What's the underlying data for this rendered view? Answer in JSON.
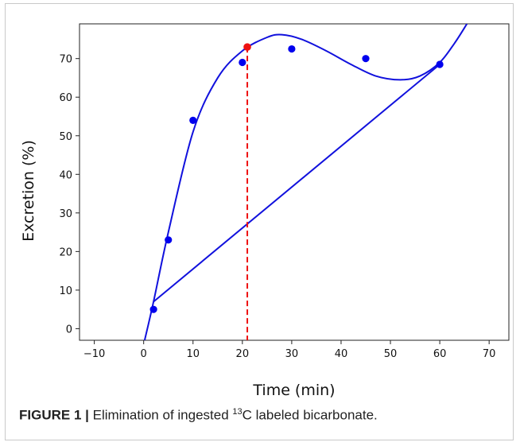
{
  "caption": {
    "label": "FIGURE 1 |",
    "text_before": " Elimination of ingested ",
    "superscript": "13",
    "text_after": "C labeled bicarbonate."
  },
  "chart_data": {
    "type": "scatter",
    "xlabel": "Time (min)",
    "ylabel": "Excretion (%)",
    "xlim": [
      -13,
      74
    ],
    "ylim": [
      -3,
      79
    ],
    "xticks": [
      -10,
      0,
      10,
      20,
      30,
      40,
      50,
      60,
      70
    ],
    "yticks": [
      0,
      10,
      20,
      30,
      40,
      50,
      60,
      70
    ],
    "grid": false,
    "points": {
      "color": "#0000ee",
      "x": [
        2,
        5,
        10,
        20,
        30,
        45,
        60
      ],
      "y": [
        5,
        23,
        54,
        69,
        72.5,
        70,
        68.5
      ]
    },
    "highlight_point": {
      "color": "#ee1111",
      "x": 21,
      "y": 73
    },
    "vline": {
      "color": "#ee1111",
      "style": "dashed",
      "x": 21
    },
    "fit_curve": {
      "color": "#1111dd",
      "x": [
        0.2,
        2,
        5,
        10,
        15,
        20,
        25,
        28,
        32,
        37,
        42,
        47,
        52,
        56,
        60,
        63,
        65.5
      ],
      "y": [
        -3,
        7,
        25,
        51,
        65,
        72,
        75.5,
        76.2,
        75,
        72,
        68.5,
        65.5,
        64.5,
        65.5,
        69,
        74,
        79
      ]
    },
    "secant_line": {
      "color": "#1111dd",
      "x": [
        2,
        60
      ],
      "y": [
        7,
        68.5
      ]
    }
  }
}
